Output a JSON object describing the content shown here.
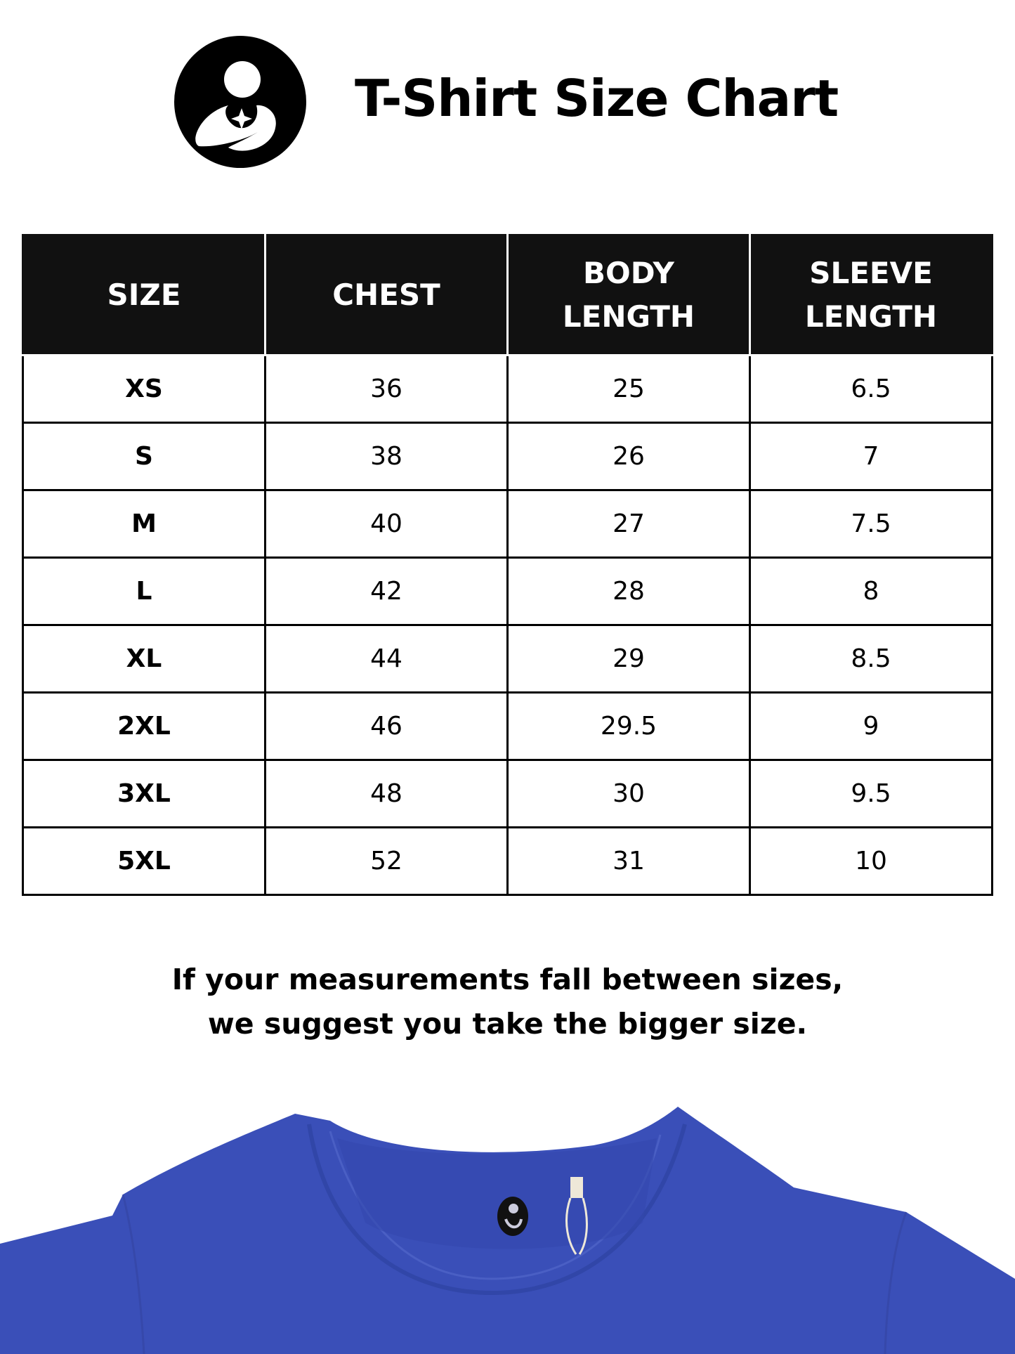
{
  "header": {
    "title": "T-Shirt Size Chart",
    "logo_icon": "mother-and-child-logo-icon"
  },
  "table": {
    "columns": [
      "SIZE",
      "CHEST",
      "BODY\nLENGTH",
      "SLEEVE\nLENGTH"
    ],
    "rows": [
      [
        "XS",
        "36",
        "25",
        "6.5"
      ],
      [
        "S",
        "38",
        "26",
        "7"
      ],
      [
        "M",
        "40",
        "27",
        "7.5"
      ],
      [
        "L",
        "42",
        "28",
        "8"
      ],
      [
        "XL",
        "44",
        "29",
        "8.5"
      ],
      [
        "2XL",
        "46",
        "29.5",
        "9"
      ],
      [
        "3XL",
        "48",
        "30",
        "9.5"
      ],
      [
        "5XL",
        "52",
        "31",
        "10"
      ]
    ]
  },
  "note": {
    "line1": "If your measurements fall between sizes,",
    "line2": "we suggest you take the bigger size."
  },
  "colors": {
    "header_bg": "#111111",
    "shirt": "#3a4fb8"
  }
}
